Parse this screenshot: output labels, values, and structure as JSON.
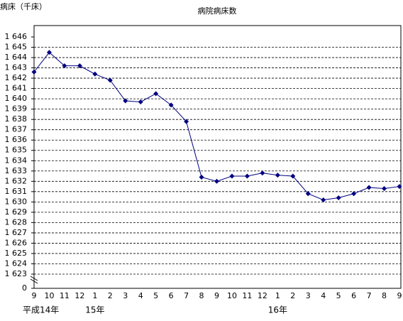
{
  "chart_data": {
    "type": "line",
    "title": "病院病床数",
    "y_label": "病床（千床）",
    "categories": [
      "9",
      "10",
      "11",
      "12",
      "1",
      "2",
      "3",
      "4",
      "5",
      "6",
      "7",
      "8",
      "9",
      "10",
      "11",
      "12",
      "1",
      "2",
      "3",
      "4",
      "5",
      "6",
      "7",
      "8",
      "9"
    ],
    "category_groups": [
      "平成14年",
      null,
      null,
      null,
      "15年",
      null,
      null,
      null,
      null,
      null,
      null,
      null,
      null,
      null,
      null,
      null,
      "16年",
      null,
      null,
      null,
      null,
      null,
      null,
      null,
      null
    ],
    "values": [
      1642.6,
      1644.5,
      1643.2,
      1643.2,
      1642.4,
      1641.8,
      1639.8,
      1639.7,
      1640.5,
      1639.4,
      1637.8,
      1632.4,
      1632.0,
      1632.5,
      1632.5,
      1632.8,
      1632.6,
      1632.5,
      1630.8,
      1630.2,
      1630.4,
      1630.8,
      1631.4,
      1631.3,
      1631.5
    ],
    "color": "#000080",
    "ylim": [
      0,
      1646
    ],
    "y_break": [
      0,
      1623
    ],
    "yticks": [
      0,
      {
        "value": 1623,
        "label": "1 623"
      },
      {
        "value": 1624,
        "label": "1 624"
      },
      {
        "value": 1625,
        "label": "1 625"
      },
      {
        "value": 1626,
        "label": "1 626"
      },
      {
        "value": 1627,
        "label": "1 627"
      },
      {
        "value": 1628,
        "label": "1 628"
      },
      {
        "value": 1629,
        "label": "1 629"
      },
      {
        "value": 1630,
        "label": "1 630"
      },
      {
        "value": 1631,
        "label": "1 631"
      },
      {
        "value": 1632,
        "label": "1 632"
      },
      {
        "value": 1633,
        "label": "1 633"
      },
      {
        "value": 1634,
        "label": "1 634"
      },
      {
        "value": 1635,
        "label": "1 635"
      },
      {
        "value": 1636,
        "label": "1 636"
      },
      {
        "value": 1637,
        "label": "1 637"
      },
      {
        "value": 1638,
        "label": "1 638"
      },
      {
        "value": 1639,
        "label": "1 639"
      },
      {
        "value": 1640,
        "label": "1 640"
      },
      {
        "value": 1641,
        "label": "1 641"
      },
      {
        "value": 1642,
        "label": "1 642"
      },
      {
        "value": 1643,
        "label": "1 643"
      },
      {
        "value": 1644,
        "label": "1 644"
      },
      {
        "value": 1645,
        "label": "1 645"
      },
      {
        "value": 1646,
        "label": "1 646"
      }
    ],
    "grid": true
  }
}
